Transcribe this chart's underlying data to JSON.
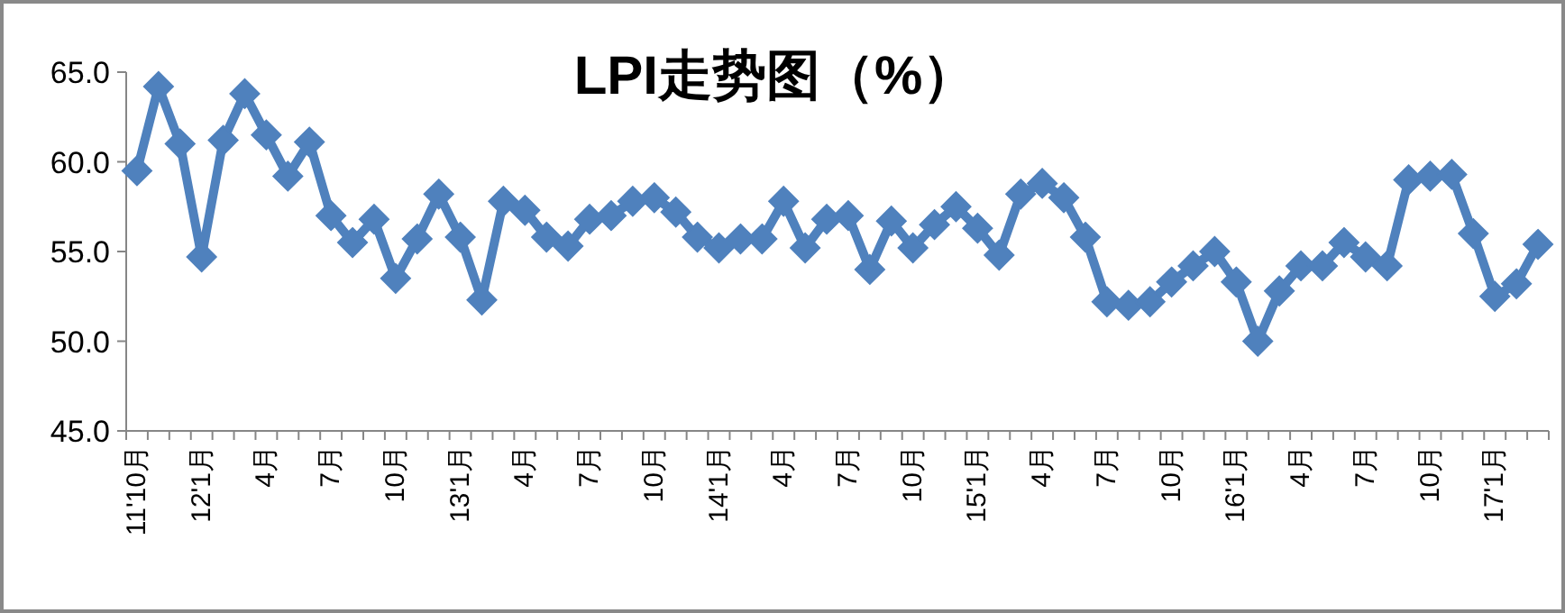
{
  "chart_data": {
    "type": "line",
    "title": "LPI走势图（%）",
    "categories": [
      "11'10月",
      null,
      null,
      "12'1月",
      null,
      null,
      "4月",
      null,
      null,
      "7月",
      null,
      null,
      "10月",
      null,
      null,
      "13'1月",
      null,
      null,
      "4月",
      null,
      null,
      "7月",
      null,
      null,
      "10月",
      null,
      null,
      "14'1月",
      null,
      null,
      "4月",
      null,
      null,
      "7月",
      null,
      null,
      "10月",
      null,
      null,
      "15'1月",
      null,
      null,
      "4月",
      null,
      null,
      "7月",
      null,
      null,
      "10月",
      null,
      null,
      "16'1月",
      null,
      null,
      "4月",
      null,
      null,
      "7月",
      null,
      null,
      "10月",
      null,
      null,
      "17'1月",
      null,
      null
    ],
    "series": [
      {
        "color": "#4f81bd",
        "values": [
          59.5,
          64.2,
          61.0,
          54.7,
          61.2,
          63.8,
          61.5,
          59.2,
          61.1,
          57.0,
          55.5,
          56.8,
          53.5,
          55.7,
          58.2,
          55.8,
          52.3,
          57.8,
          57.3,
          55.8,
          55.3,
          56.8,
          57.0,
          57.8,
          58.0,
          57.2,
          55.8,
          55.2,
          55.7,
          55.7,
          57.8,
          55.2,
          56.8,
          57.0,
          54.0,
          56.7,
          55.2,
          56.5,
          57.5,
          56.3,
          54.8,
          58.2,
          58.8,
          58.0,
          55.8,
          52.2,
          52.0,
          52.2,
          53.3,
          54.2,
          55.0,
          53.3,
          50.0,
          52.8,
          54.2,
          54.2,
          55.5,
          54.7,
          54.2,
          59.0,
          59.2,
          59.3,
          56.0,
          52.5,
          53.2,
          55.4
        ]
      }
    ],
    "ylim": [
      45,
      65
    ],
    "yticks": [
      {
        "value": 45,
        "label": "45.0"
      },
      {
        "value": 50,
        "label": "50.0"
      },
      {
        "value": 55,
        "label": "55.0"
      },
      {
        "value": 60,
        "label": "60.0"
      },
      {
        "value": 65,
        "label": "65.0"
      }
    ],
    "marker": "diamond",
    "line_style": "solid",
    "grid": false
  }
}
